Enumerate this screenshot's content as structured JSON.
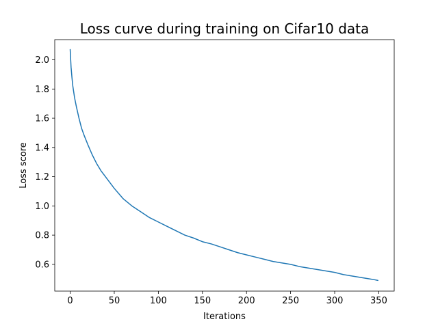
{
  "chart_data": {
    "type": "line",
    "title": "Loss curve during training on Cifar10 data",
    "xlabel": "Iterations",
    "ylabel": "Loss score",
    "xlim": [
      -17.5,
      367.5
    ],
    "ylim": [
      0.417,
      2.138
    ],
    "xticks": [
      0,
      50,
      100,
      150,
      200,
      250,
      300,
      350
    ],
    "yticks": [
      0.6,
      0.8,
      1.0,
      1.2,
      1.4,
      1.6,
      1.8,
      2.0
    ],
    "xtick_labels": [
      "0",
      "50",
      "100",
      "150",
      "200",
      "250",
      "300",
      "350"
    ],
    "ytick_labels": [
      "0.6",
      "0.8",
      "1.0",
      "1.2",
      "1.4",
      "1.6",
      "1.8",
      "2.0"
    ],
    "grid": false,
    "legend": "none",
    "series": [
      {
        "color": "#1f77b4",
        "x": [
          0,
          1,
          2,
          3,
          5,
          7,
          10,
          13,
          16,
          20,
          25,
          30,
          35,
          40,
          50,
          60,
          70,
          80,
          90,
          100,
          110,
          120,
          130,
          140,
          150,
          160,
          170,
          180,
          190,
          200,
          210,
          220,
          230,
          240,
          250,
          260,
          270,
          280,
          290,
          300,
          310,
          320,
          330,
          340,
          345,
          349
        ],
        "y": [
          2.07,
          1.95,
          1.88,
          1.82,
          1.74,
          1.68,
          1.6,
          1.53,
          1.48,
          1.42,
          1.35,
          1.29,
          1.24,
          1.2,
          1.12,
          1.05,
          1.0,
          0.96,
          0.92,
          0.89,
          0.86,
          0.83,
          0.8,
          0.78,
          0.755,
          0.74,
          0.72,
          0.7,
          0.68,
          0.665,
          0.65,
          0.635,
          0.62,
          0.61,
          0.6,
          0.585,
          0.575,
          0.565,
          0.555,
          0.545,
          0.53,
          0.52,
          0.51,
          0.5,
          0.495,
          0.49
        ]
      }
    ]
  }
}
